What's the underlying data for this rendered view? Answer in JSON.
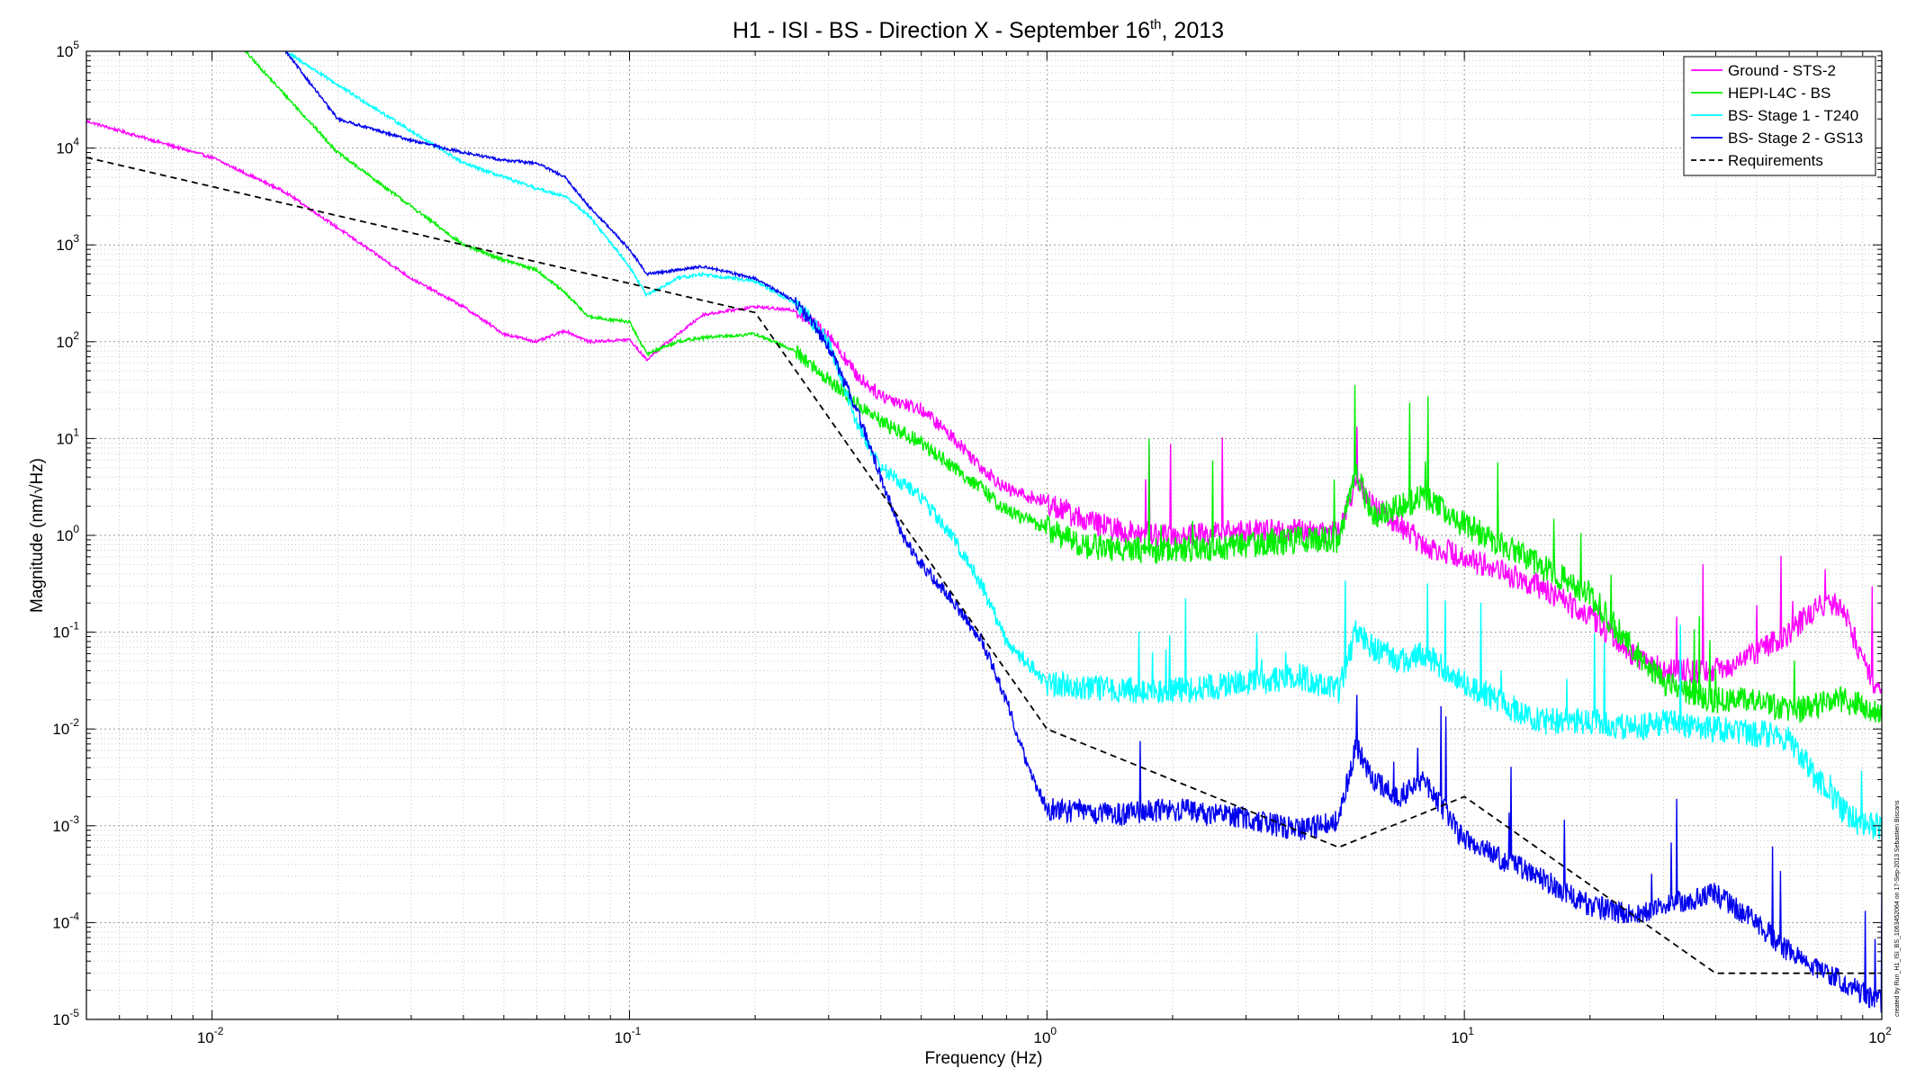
{
  "chart_data": {
    "type": "line",
    "title": {
      "prefix": "H1 - ISI - BS - Direction X - September 16",
      "superscript": "th",
      "suffix": ", 2013"
    },
    "xlabel": "Frequency (Hz)",
    "ylabel": "Magnitude (nm/√Hz)",
    "x_scale": "log",
    "y_scale": "log",
    "xlim": [
      0.005,
      100
    ],
    "ylim": [
      1e-05,
      100000
    ],
    "grid": "on",
    "legend_position": "top-right",
    "x_ticks": [
      {
        "value": 0.01,
        "base": "10",
        "exp": "-2"
      },
      {
        "value": 0.1,
        "base": "10",
        "exp": "-1"
      },
      {
        "value": 1,
        "base": "10",
        "exp": "0"
      },
      {
        "value": 10,
        "base": "10",
        "exp": "1"
      },
      {
        "value": 100,
        "base": "10",
        "exp": "2"
      }
    ],
    "y_ticks": [
      {
        "value": 100000,
        "base": "10",
        "exp": "5"
      },
      {
        "value": 10000,
        "base": "10",
        "exp": "4"
      },
      {
        "value": 1000,
        "base": "10",
        "exp": "3"
      },
      {
        "value": 100,
        "base": "10",
        "exp": "2"
      },
      {
        "value": 10,
        "base": "10",
        "exp": "1"
      },
      {
        "value": 1,
        "base": "10",
        "exp": "0"
      },
      {
        "value": 0.1,
        "base": "10",
        "exp": "-1"
      },
      {
        "value": 0.01,
        "base": "10",
        "exp": "-2"
      },
      {
        "value": 0.001,
        "base": "10",
        "exp": "-3"
      },
      {
        "value": 0.0001,
        "base": "10",
        "exp": "-4"
      },
      {
        "value": 1e-05,
        "base": "10",
        "exp": "-5"
      }
    ],
    "series": [
      {
        "name": "Ground - STS-2",
        "color": "#ff00ff",
        "noise_dex": 0.13,
        "points": [
          [
            0.005,
            19000
          ],
          [
            0.01,
            8000
          ],
          [
            0.015,
            3500
          ],
          [
            0.02,
            1500
          ],
          [
            0.03,
            450
          ],
          [
            0.04,
            230
          ],
          [
            0.05,
            120
          ],
          [
            0.06,
            100
          ],
          [
            0.07,
            130
          ],
          [
            0.08,
            100
          ],
          [
            0.1,
            105
          ],
          [
            0.11,
            65
          ],
          [
            0.12,
            90
          ],
          [
            0.15,
            190
          ],
          [
            0.2,
            230
          ],
          [
            0.25,
            210
          ],
          [
            0.3,
            120
          ],
          [
            0.35,
            45
          ],
          [
            0.4,
            28
          ],
          [
            0.5,
            20
          ],
          [
            0.6,
            10
          ],
          [
            0.7,
            5
          ],
          [
            0.8,
            3
          ],
          [
            1,
            2.2
          ],
          [
            1.2,
            1.5
          ],
          [
            1.5,
            1.1
          ],
          [
            2,
            1.0
          ],
          [
            3,
            1.1
          ],
          [
            4,
            1.1
          ],
          [
            5,
            1.1
          ],
          [
            5.5,
            3.5
          ],
          [
            6,
            2
          ],
          [
            7,
            1.3
          ],
          [
            8,
            0.8
          ],
          [
            10,
            0.6
          ],
          [
            15,
            0.3
          ],
          [
            20,
            0.15
          ],
          [
            25,
            0.06
          ],
          [
            30,
            0.04
          ],
          [
            40,
            0.04
          ],
          [
            50,
            0.06
          ],
          [
            60,
            0.1
          ],
          [
            70,
            0.18
          ],
          [
            80,
            0.2
          ],
          [
            90,
            0.05
          ],
          [
            100,
            0.02
          ]
        ]
      },
      {
        "name": "HEPI-L4C - BS",
        "color": "#00ee00",
        "noise_dex": 0.14,
        "points": [
          [
            0.012,
            100000
          ],
          [
            0.02,
            9000
          ],
          [
            0.03,
            2500
          ],
          [
            0.04,
            1000
          ],
          [
            0.05,
            700
          ],
          [
            0.06,
            550
          ],
          [
            0.07,
            320
          ],
          [
            0.08,
            180
          ],
          [
            0.1,
            160
          ],
          [
            0.11,
            75
          ],
          [
            0.13,
            100
          ],
          [
            0.15,
            110
          ],
          [
            0.2,
            120
          ],
          [
            0.25,
            80
          ],
          [
            0.3,
            40
          ],
          [
            0.35,
            23
          ],
          [
            0.4,
            15
          ],
          [
            0.5,
            9
          ],
          [
            0.6,
            5
          ],
          [
            0.7,
            3
          ],
          [
            0.8,
            1.8
          ],
          [
            1,
            1.2
          ],
          [
            1.2,
            0.8
          ],
          [
            1.5,
            0.7
          ],
          [
            2,
            0.7
          ],
          [
            3,
            0.8
          ],
          [
            4,
            0.9
          ],
          [
            5,
            0.9
          ],
          [
            5.5,
            5
          ],
          [
            6,
            1.5
          ],
          [
            7,
            2
          ],
          [
            8,
            2.5
          ],
          [
            10,
            1.3
          ],
          [
            15,
            0.5
          ],
          [
            20,
            0.25
          ],
          [
            25,
            0.07
          ],
          [
            30,
            0.03
          ],
          [
            40,
            0.02
          ],
          [
            50,
            0.02
          ],
          [
            60,
            0.015
          ],
          [
            80,
            0.02
          ],
          [
            100,
            0.015
          ]
        ]
      },
      {
        "name": "BS- Stage 1 - T240",
        "color": "#00ffff",
        "noise_dex": 0.14,
        "points": [
          [
            0.015,
            100000
          ],
          [
            0.02,
            45000
          ],
          [
            0.03,
            15000
          ],
          [
            0.04,
            7000
          ],
          [
            0.05,
            5000
          ],
          [
            0.06,
            3800
          ],
          [
            0.07,
            3200
          ],
          [
            0.08,
            2000
          ],
          [
            0.1,
            600
          ],
          [
            0.11,
            300
          ],
          [
            0.13,
            450
          ],
          [
            0.15,
            500
          ],
          [
            0.2,
            420
          ],
          [
            0.25,
            250
          ],
          [
            0.3,
            100
          ],
          [
            0.35,
            15
          ],
          [
            0.4,
            5
          ],
          [
            0.5,
            2.5
          ],
          [
            0.6,
            0.9
          ],
          [
            0.7,
            0.3
          ],
          [
            0.8,
            0.08
          ],
          [
            1,
            0.03
          ],
          [
            1.5,
            0.025
          ],
          [
            2,
            0.025
          ],
          [
            3,
            0.03
          ],
          [
            4,
            0.035
          ],
          [
            5,
            0.025
          ],
          [
            5.5,
            0.1
          ],
          [
            6,
            0.07
          ],
          [
            7,
            0.05
          ],
          [
            8,
            0.06
          ],
          [
            10,
            0.03
          ],
          [
            15,
            0.012
          ],
          [
            20,
            0.012
          ],
          [
            25,
            0.01
          ],
          [
            30,
            0.012
          ],
          [
            40,
            0.01
          ],
          [
            50,
            0.009
          ],
          [
            60,
            0.008
          ],
          [
            70,
            0.003
          ],
          [
            80,
            0.0015
          ],
          [
            90,
            0.001
          ],
          [
            100,
            0.001
          ]
        ]
      },
      {
        "name": "BS- Stage 2 - GS13",
        "color": "#0000ee",
        "noise_dex": 0.12,
        "points": [
          [
            0.015,
            100000
          ],
          [
            0.02,
            20000
          ],
          [
            0.03,
            12000
          ],
          [
            0.04,
            9000
          ],
          [
            0.05,
            7500
          ],
          [
            0.06,
            7000
          ],
          [
            0.07,
            5000
          ],
          [
            0.08,
            2500
          ],
          [
            0.1,
            900
          ],
          [
            0.11,
            500
          ],
          [
            0.13,
            550
          ],
          [
            0.15,
            600
          ],
          [
            0.2,
            450
          ],
          [
            0.25,
            260
          ],
          [
            0.3,
            90
          ],
          [
            0.35,
            20
          ],
          [
            0.4,
            4
          ],
          [
            0.45,
            1
          ],
          [
            0.5,
            0.5
          ],
          [
            0.6,
            0.2
          ],
          [
            0.7,
            0.08
          ],
          [
            0.8,
            0.02
          ],
          [
            0.9,
            0.004
          ],
          [
            1,
            0.0015
          ],
          [
            1.5,
            0.0013
          ],
          [
            2,
            0.0015
          ],
          [
            3,
            0.0012
          ],
          [
            4,
            0.0009
          ],
          [
            5,
            0.0011
          ],
          [
            5.5,
            0.007
          ],
          [
            6,
            0.003
          ],
          [
            7,
            0.002
          ],
          [
            8,
            0.003
          ],
          [
            10,
            0.0007
          ],
          [
            15,
            0.0003
          ],
          [
            20,
            0.00015
          ],
          [
            25,
            0.00012
          ],
          [
            30,
            0.00015
          ],
          [
            40,
            0.0002
          ],
          [
            50,
            0.0001
          ],
          [
            60,
            5e-05
          ],
          [
            80,
            2.5e-05
          ],
          [
            100,
            1.5e-05
          ]
        ]
      },
      {
        "name": "Requirements",
        "color": "#000000",
        "dashed": true,
        "points": [
          [
            0.005,
            8000
          ],
          [
            0.2,
            200
          ],
          [
            1,
            0.01
          ],
          [
            5,
            0.0006
          ],
          [
            10,
            0.002
          ],
          [
            40,
            3e-05
          ],
          [
            100,
            3e-05
          ]
        ]
      }
    ],
    "annotations": [
      {
        "text": "created by Run_H1_ISI_BS_1063452064 on 17-Sep-2013 Sebastien Biscans"
      }
    ]
  }
}
